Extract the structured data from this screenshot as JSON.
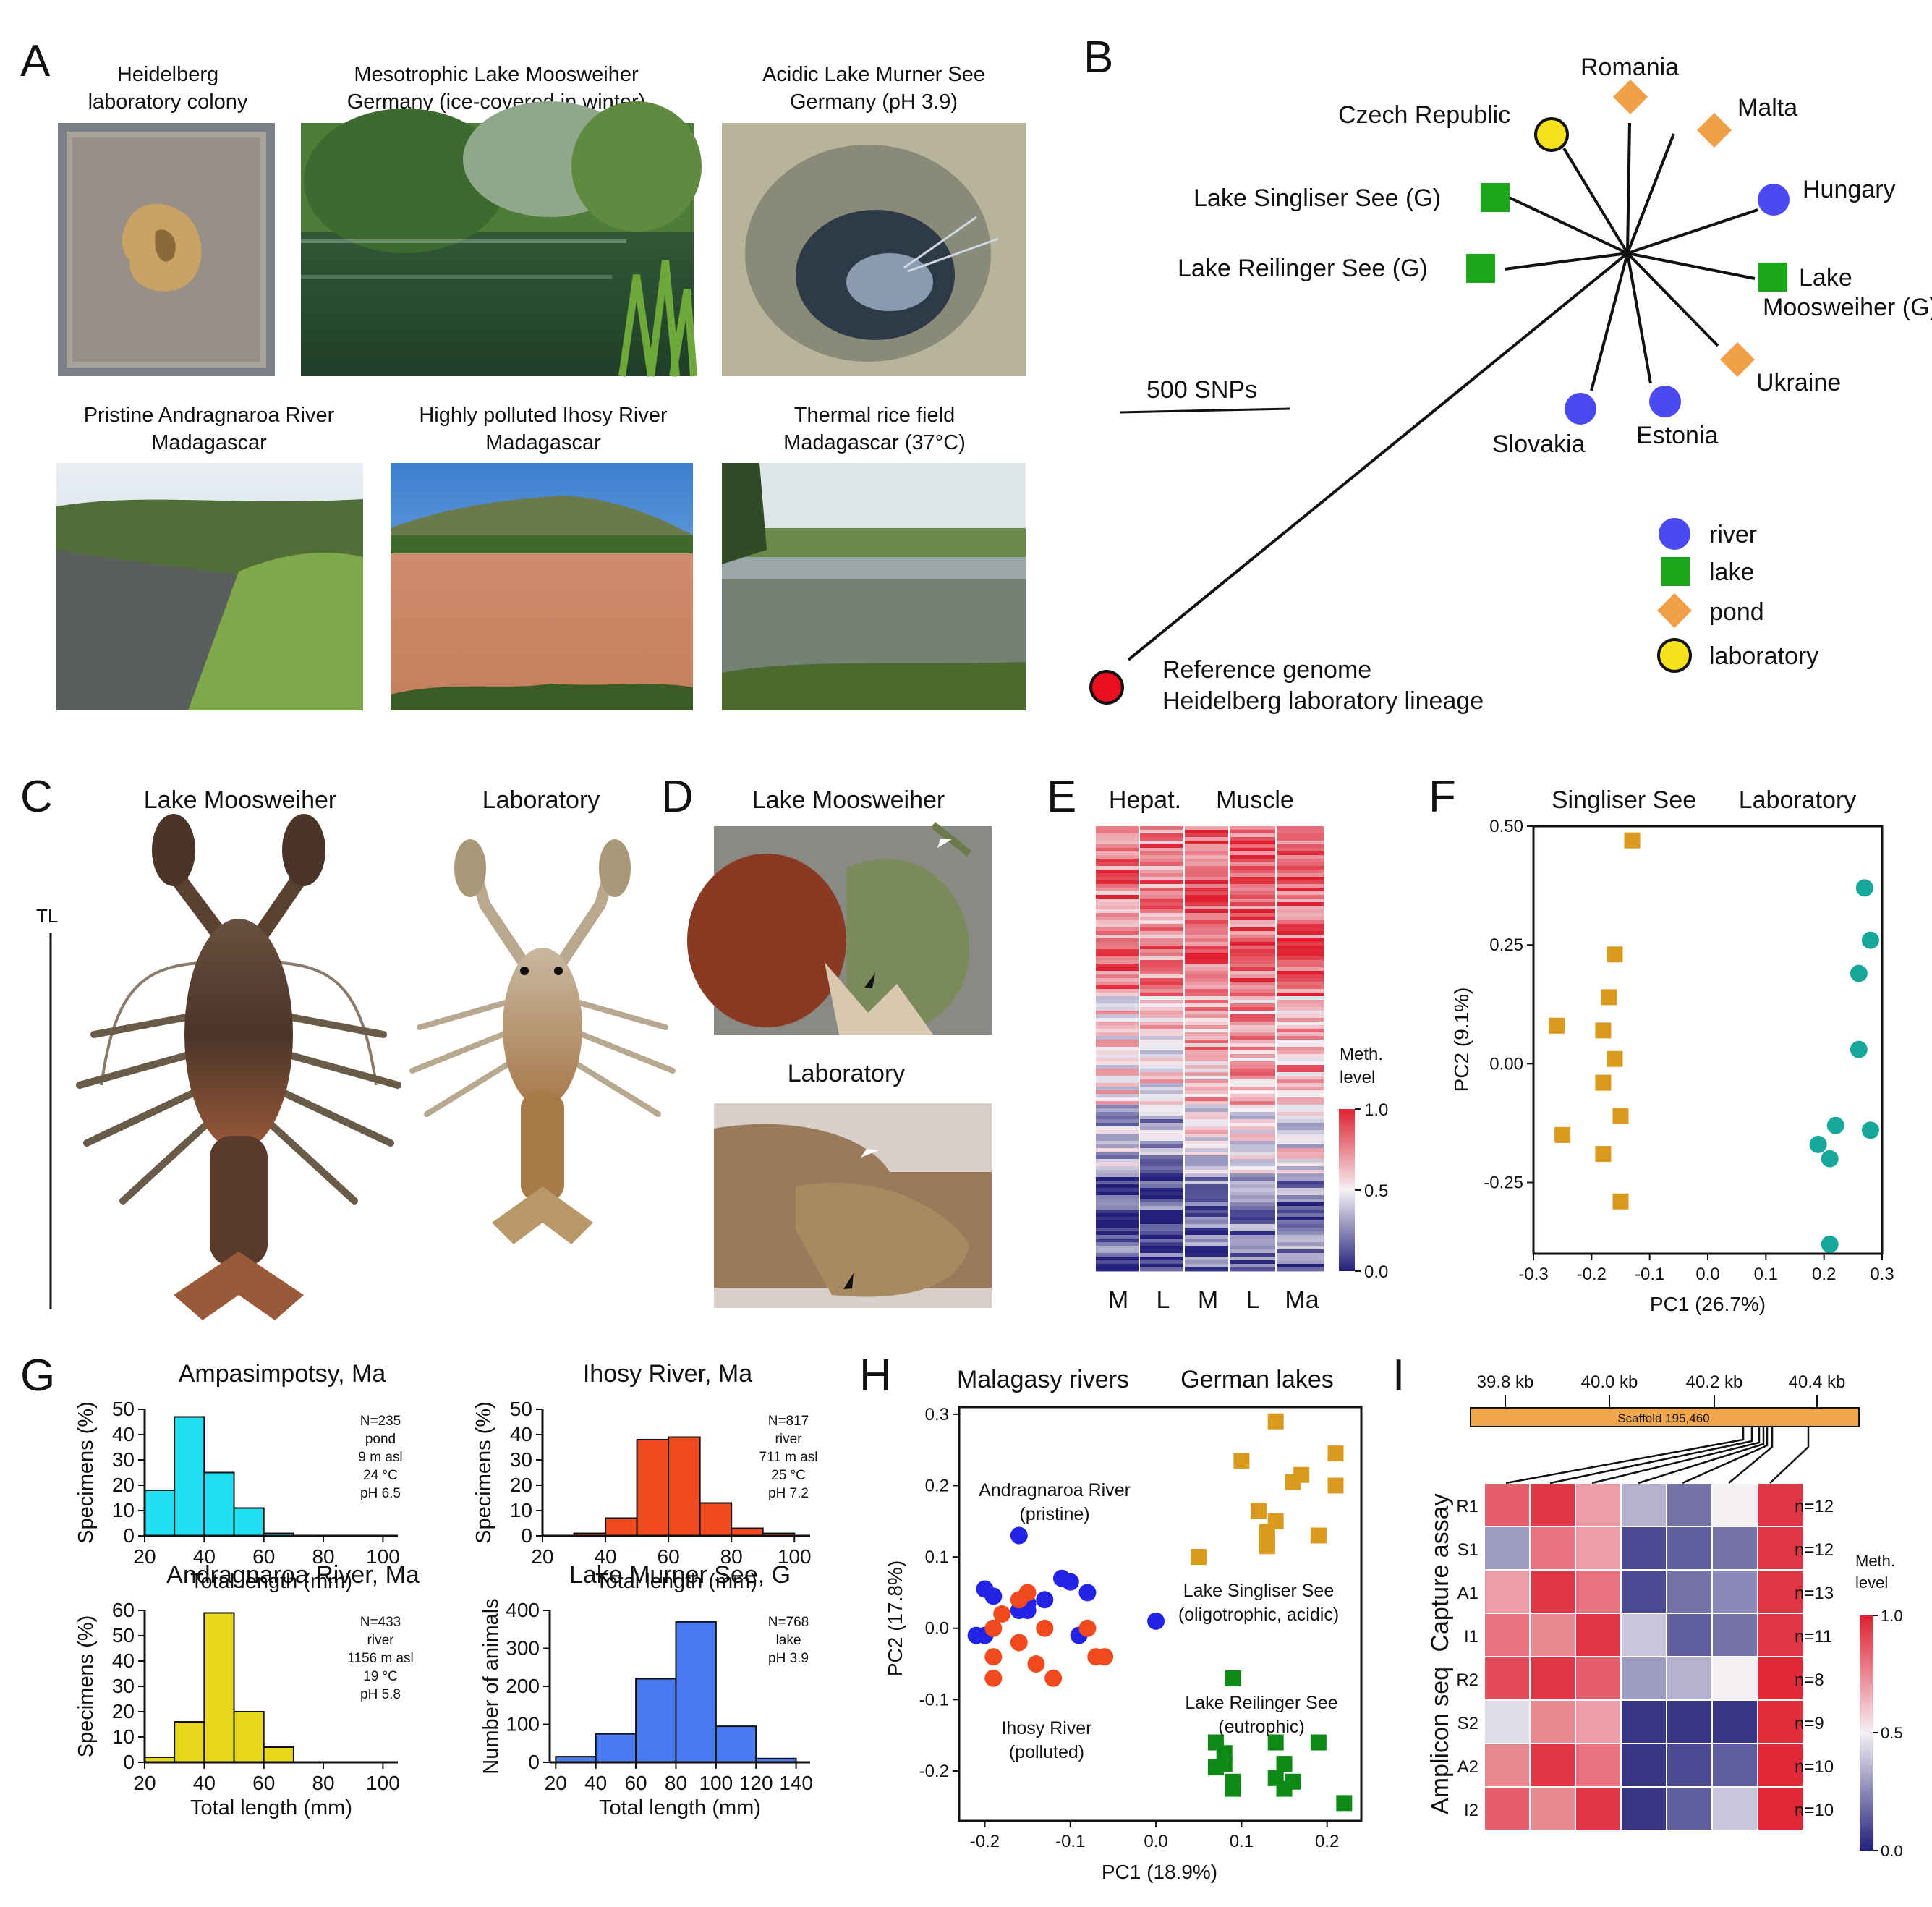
{
  "panels": {
    "A": "A",
    "B": "B",
    "C": "C",
    "D": "D",
    "E": "E",
    "F": "F",
    "G": "G",
    "H": "H",
    "I": "I"
  },
  "panelA": {
    "photos": [
      {
        "line1": "Heidelberg",
        "line2": "laboratory colony"
      },
      {
        "line1": "Mesotrophic Lake Moosweiher",
        "line2": "Germany (ice-covered in winter)"
      },
      {
        "line1": "Acidic Lake Murner See",
        "line2": "Germany (pH 3.9)"
      },
      {
        "line1": "Pristine Andragnaroa River",
        "line2": "Madagascar"
      },
      {
        "line1": "Highly polluted Ihosy River",
        "line2": "Madagascar"
      },
      {
        "line1": "Thermal rice field",
        "line2": "Madagascar (37°C)"
      }
    ]
  },
  "panelB": {
    "tips": [
      {
        "label": "Romania",
        "type": "pond"
      },
      {
        "label": "Malta",
        "type": "pond"
      },
      {
        "label": "Czech Republic",
        "type": "laboratory"
      },
      {
        "label": "Hungary",
        "type": "river"
      },
      {
        "label": "Lake Singliser See (G)",
        "type": "lake"
      },
      {
        "label": "Lake Reilinger See (G)",
        "type": "lake"
      },
      {
        "label": "Lake",
        "label2": "Moosweiher (G)",
        "type": "lake"
      },
      {
        "label": "Ukraine",
        "type": "pond"
      },
      {
        "label": "Slovakia",
        "type": "river"
      },
      {
        "label": "Estonia",
        "type": "river"
      }
    ],
    "scale": "500 SNPs",
    "ref_line1": "Reference genome",
    "ref_line2": "Heidelberg laboratory lineage",
    "legend": [
      "river",
      "lake",
      "pond",
      "laboratory"
    ],
    "colors": {
      "river": "#4a4af0",
      "lake": "#1aa81a",
      "pond": "#f0a048",
      "laboratory": "#f5e21a",
      "reference": "#e8101e"
    }
  },
  "panelC": {
    "left": "Lake Moosweiher",
    "right": "Laboratory",
    "tl": "TL"
  },
  "panelD": {
    "top": "Lake Moosweiher",
    "bottom": "Laboratory"
  },
  "panelE": {
    "h1": "Hepat.",
    "h2": "Muscle",
    "cols": [
      "M",
      "L",
      "M",
      "L",
      "Ma"
    ],
    "legend_title1": "Meth.",
    "legend_title2": "level",
    "ticks": [
      "1.0",
      "0.5",
      "0.0"
    ]
  },
  "chart_data": [
    {
      "id": "F",
      "type": "scatter",
      "titles": [
        "Singliser See",
        "Laboratory"
      ],
      "xlabel": "PC1 (26.7%)",
      "ylabel": "PC2 (9.1%)",
      "xlim": [
        -0.3,
        0.3
      ],
      "ylim": [
        -0.4,
        0.5
      ],
      "xticks": [
        "-0.3",
        "-0.2",
        "-0.1",
        "0.0",
        "0.1",
        "0.2",
        "0.3"
      ],
      "yticks": [
        "0.50",
        "0.25",
        "0.00",
        "-0.25"
      ],
      "series": [
        {
          "name": "Singliser See",
          "color": "#d99a1e",
          "marker": "square",
          "x": [
            -0.13,
            -0.26,
            -0.16,
            -0.18,
            -0.17,
            -0.16,
            -0.18,
            -0.15,
            -0.25,
            -0.18,
            -0.15
          ],
          "y": [
            0.47,
            0.08,
            0.23,
            0.07,
            0.14,
            0.01,
            -0.04,
            -0.11,
            -0.15,
            -0.19,
            -0.29
          ]
        },
        {
          "name": "Laboratory",
          "color": "#16a89a",
          "marker": "circle",
          "x": [
            0.27,
            0.28,
            0.26,
            0.26,
            0.28,
            0.19,
            0.22,
            0.21,
            0.21
          ],
          "y": [
            0.37,
            0.26,
            0.19,
            0.03,
            -0.14,
            -0.17,
            -0.13,
            -0.2,
            -0.38
          ]
        }
      ]
    },
    {
      "id": "G1",
      "type": "bar",
      "title": "Ampasimpotsy, Ma",
      "xlabel": "Total length (mm)",
      "ylabel": "Specimens (%)",
      "categories": [
        25,
        35,
        45,
        55,
        65,
        75,
        85,
        95
      ],
      "values": [
        18,
        47,
        25,
        11,
        1,
        0,
        0,
        0
      ],
      "ylim": [
        0,
        50
      ],
      "yticks": [
        "0",
        "10",
        "20",
        "30",
        "40",
        "50"
      ],
      "xticks": [
        "20",
        "40",
        "60",
        "80",
        "100"
      ],
      "color": "#1ee0f0",
      "info": [
        "N=235",
        "pond",
        "9 m asl",
        "24 °C",
        "pH 6.5"
      ]
    },
    {
      "id": "G2",
      "type": "bar",
      "title": "Ihosy River, Ma",
      "xlabel": "Total length (mm)",
      "ylabel": "Specimens (%)",
      "categories": [
        35,
        45,
        55,
        65,
        75,
        85,
        95
      ],
      "values": [
        1,
        7,
        38,
        39,
        13,
        3,
        1
      ],
      "ylim": [
        0,
        50
      ],
      "yticks": [
        "0",
        "10",
        "20",
        "30",
        "40",
        "50"
      ],
      "xticks": [
        "20",
        "40",
        "60",
        "80",
        "100"
      ],
      "color": "#f04a20",
      "info": [
        "N=817",
        "river",
        "711 m asl",
        "25 °C",
        "pH 7.2"
      ]
    },
    {
      "id": "G3",
      "type": "bar",
      "title": "Andragnaroa River, Ma",
      "xlabel": "Total length (mm)",
      "ylabel": "Specimens (%)",
      "categories": [
        25,
        35,
        45,
        55,
        65
      ],
      "values": [
        2,
        16,
        59,
        20,
        6
      ],
      "ylim": [
        0,
        60
      ],
      "yticks": [
        "0",
        "10",
        "20",
        "30",
        "40",
        "50",
        "60"
      ],
      "xticks": [
        "20",
        "40",
        "60",
        "80",
        "100"
      ],
      "color": "#e8d81a",
      "info": [
        "N=433",
        "river",
        "1156 m asl",
        "19 °C",
        "pH 5.8"
      ]
    },
    {
      "id": "G4",
      "type": "bar",
      "title": "Lake Murner See, G",
      "xlabel": "Total length (mm)",
      "ylabel": "Number of animals",
      "categories": [
        30,
        50,
        70,
        90,
        110,
        130
      ],
      "values": [
        15,
        75,
        220,
        370,
        95,
        10
      ],
      "ylim": [
        0,
        400
      ],
      "yticks": [
        "0",
        "100",
        "200",
        "300",
        "400"
      ],
      "xticks": [
        "20",
        "40",
        "60",
        "80",
        "100",
        "120",
        "140"
      ],
      "color": "#4a7af0",
      "info": [
        "N=768",
        "lake",
        "pH 3.9"
      ]
    },
    {
      "id": "H",
      "type": "scatter",
      "titles": [
        "Malagasy rivers",
        "German lakes"
      ],
      "xlabel": "PC1 (18.9%)",
      "ylabel": "PC2 (17.8%)",
      "xlim": [
        -0.23,
        0.24
      ],
      "ylim": [
        -0.27,
        0.31
      ],
      "xticks": [
        "-0.2",
        "-0.1",
        "0.0",
        "0.1",
        "0.2"
      ],
      "yticks": [
        "0.3",
        "0.2",
        "0.1",
        "0.0",
        "-0.1",
        "-0.2"
      ],
      "annotations": [
        {
          "line1": "Andragnaroa River",
          "line2": "(pristine)"
        },
        {
          "line1": "Ihosy River",
          "line2": "(polluted)"
        },
        {
          "line1": "Lake Singliser See",
          "line2": "(oligotrophic, acidic)"
        },
        {
          "line1": "Lake Reilinger See",
          "line2": "(eutrophic)"
        }
      ],
      "series": [
        {
          "name": "Andragnaroa River",
          "color": "#2323e8",
          "marker": "circle",
          "x": [
            -0.16,
            -0.2,
            -0.19,
            -0.16,
            -0.15,
            -0.13,
            -0.11,
            -0.1,
            -0.08,
            -0.21,
            -0.2,
            -0.09,
            -0.15,
            0.0
          ],
          "y": [
            0.13,
            0.055,
            0.045,
            0.025,
            0.035,
            0.04,
            0.07,
            0.065,
            0.05,
            -0.01,
            -0.01,
            -0.01,
            0.025,
            0.01
          ]
        },
        {
          "name": "Ihosy River",
          "color": "#f04a1e",
          "marker": "circle",
          "x": [
            -0.15,
            -0.18,
            -0.19,
            -0.16,
            -0.13,
            -0.19,
            -0.16,
            -0.14,
            -0.08,
            -0.07,
            -0.06,
            -0.19,
            -0.12
          ],
          "y": [
            0.05,
            0.02,
            0.0,
            0.04,
            0.0,
            -0.04,
            -0.02,
            -0.05,
            0.0,
            -0.04,
            -0.04,
            -0.07,
            -0.07
          ]
        },
        {
          "name": "Lake Singliser See",
          "color": "#d99a1e",
          "marker": "square",
          "x": [
            0.14,
            0.1,
            0.17,
            0.16,
            0.21,
            0.21,
            0.12,
            0.14,
            0.13,
            0.13,
            0.19,
            0.05
          ],
          "y": [
            0.29,
            0.235,
            0.215,
            0.205,
            0.245,
            0.2,
            0.165,
            0.15,
            0.135,
            0.115,
            0.13,
            0.1
          ]
        },
        {
          "name": "Lake Reilinger See",
          "color": "#0d8a16",
          "marker": "square",
          "x": [
            0.09,
            0.07,
            0.08,
            0.14,
            0.19,
            0.15,
            0.08,
            0.07,
            0.09,
            0.14,
            0.16,
            0.15,
            0.09,
            0.22
          ],
          "y": [
            -0.07,
            -0.16,
            -0.175,
            -0.16,
            -0.16,
            -0.19,
            -0.19,
            -0.195,
            -0.215,
            -0.21,
            -0.215,
            -0.225,
            -0.225,
            -0.245
          ]
        }
      ]
    }
  ],
  "panelI": {
    "ticks": [
      "39.8 kb",
      "40.0 kb",
      "40.2 kb",
      "40.4 kb"
    ],
    "scaffold": "Scaffold 195,460",
    "group1": "Capture assay",
    "group2": "Amplicon seq",
    "rows": [
      {
        "label": "R1",
        "n": "n=12",
        "vals": [
          0.85,
          0.95,
          0.7,
          0.35,
          0.2,
          0.5,
          0.95
        ]
      },
      {
        "label": "S1",
        "n": "n=12",
        "vals": [
          0.3,
          0.8,
          0.7,
          0.1,
          0.15,
          0.2,
          0.95
        ]
      },
      {
        "label": "A1",
        "n": "n=13",
        "vals": [
          0.7,
          0.95,
          0.8,
          0.1,
          0.2,
          0.25,
          0.95
        ]
      },
      {
        "label": "I1",
        "n": "n=11",
        "vals": [
          0.8,
          0.75,
          0.95,
          0.4,
          0.15,
          0.2,
          0.95
        ]
      },
      {
        "label": "R2",
        "n": "n=8",
        "vals": [
          0.9,
          0.95,
          0.85,
          0.3,
          0.35,
          0.5,
          0.98
        ]
      },
      {
        "label": "S2",
        "n": "n=9",
        "vals": [
          0.45,
          0.75,
          0.7,
          0.05,
          0.05,
          0.05,
          0.97
        ]
      },
      {
        "label": "A2",
        "n": "n=10",
        "vals": [
          0.75,
          0.95,
          0.8,
          0.05,
          0.1,
          0.15,
          0.98
        ]
      },
      {
        "label": "I2",
        "n": "n=10",
        "vals": [
          0.85,
          0.75,
          0.95,
          0.05,
          0.15,
          0.4,
          0.98
        ]
      }
    ],
    "legend_title1": "Meth.",
    "legend_title2": "level",
    "legend_ticks": [
      "1.0",
      "0.5",
      "0.0"
    ]
  }
}
